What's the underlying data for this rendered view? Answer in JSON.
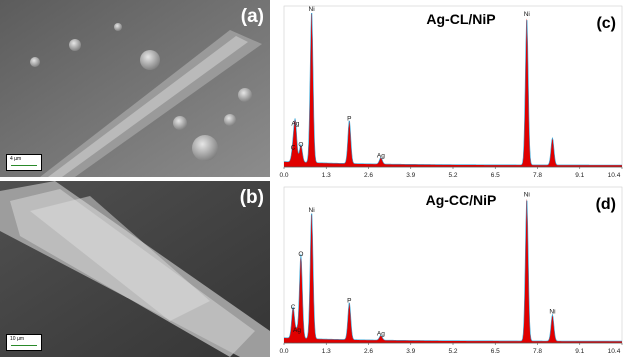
{
  "panels": {
    "a": {
      "letter": "(a)",
      "scale_label": "4 µm"
    },
    "b": {
      "letter": "(b)",
      "scale_label": "10 µm"
    }
  },
  "colors": {
    "spectrum": "#e00000",
    "envelope": "#3aa9d9",
    "axis": "#555555"
  },
  "chart_data": [
    {
      "type": "area",
      "title": "Ag-CL/NiP",
      "letter": "(c)",
      "xlim": [
        0.0,
        10.4
      ],
      "ylim": [
        0,
        100
      ],
      "x_ticks": [
        "0.0",
        "1.3",
        "2.6",
        "3.9",
        "5.2",
        "6.5",
        "7.8",
        "9.1",
        "10.4"
      ],
      "grid": false,
      "peaks": [
        {
          "label": "C",
          "x": 0.28,
          "y": 9
        },
        {
          "label": "O",
          "x": 0.52,
          "y": 11
        },
        {
          "label": "Ag",
          "x": 0.35,
          "y": 24
        },
        {
          "label": "Ni",
          "x": 0.85,
          "y": 95
        },
        {
          "label": "P",
          "x": 2.01,
          "y": 27
        },
        {
          "label": "Ag",
          "x": 2.98,
          "y": 4
        },
        {
          "label": "Ni",
          "x": 7.47,
          "y": 92
        },
        {
          "label": "",
          "x": 8.26,
          "y": 17
        }
      ]
    },
    {
      "type": "area",
      "title": "Ag-CC/NiP",
      "letter": "(d)",
      "xlim": [
        0.0,
        10.4
      ],
      "ylim": [
        0,
        100
      ],
      "x_ticks": [
        "0.0",
        "1.3",
        "2.6",
        "3.9",
        "5.2",
        "6.5",
        "7.8",
        "9.1",
        "10.4"
      ],
      "grid": false,
      "peaks": [
        {
          "label": "C",
          "x": 0.28,
          "y": 20
        },
        {
          "label": "Ag",
          "x": 0.4,
          "y": 5
        },
        {
          "label": "O",
          "x": 0.52,
          "y": 54
        },
        {
          "label": "Ni",
          "x": 0.85,
          "y": 82
        },
        {
          "label": "P",
          "x": 2.01,
          "y": 24
        },
        {
          "label": "Ag",
          "x": 2.98,
          "y": 3
        },
        {
          "label": "Ni",
          "x": 7.47,
          "y": 92
        },
        {
          "label": "Ni",
          "x": 8.26,
          "y": 17
        }
      ]
    }
  ]
}
